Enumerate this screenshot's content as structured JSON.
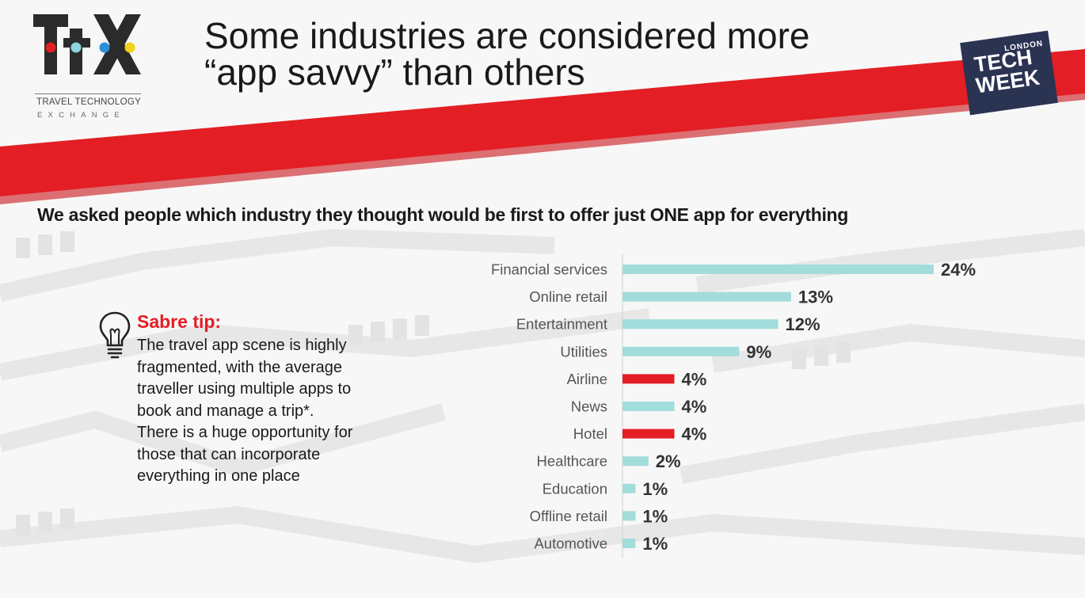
{
  "logo": {
    "mark": "ttx",
    "line1": "TRAVEL TECHNOLOGY",
    "line2": "EXCHANGE",
    "colors": {
      "letters": "#2b2b2b",
      "dot_red": "#e31e24",
      "dot_aqua": "#8fd3e0",
      "dot_blue": "#2d8fd6",
      "dot_yellow": "#f2d21b"
    }
  },
  "title": {
    "line1": "Some industries are considered more",
    "line2": "“app savvy” than others"
  },
  "badge": {
    "small": "LONDON",
    "big1": "TECH",
    "big2": "WEEK",
    "color": "#2b3353"
  },
  "subtitle": "We asked people which industry they thought would be first to offer just ONE app for everything",
  "tip": {
    "icon": "lightbulb-icon",
    "heading": "Sabre tip:",
    "body": "The travel app scene is highly fragmented, with the average traveller using multiple apps to book and manage a trip*.  There is a huge opportunity for those that can incorporate everything in one place"
  },
  "colors": {
    "accent_red": "#e31e24",
    "bar_aqua": "#a2dcdb",
    "text_dark": "#1a1a1a"
  },
  "chart_data": {
    "type": "bar",
    "orientation": "horizontal",
    "categories": [
      "Financial services",
      "Online retail",
      "Entertainment",
      "Utilities",
      "Airline",
      "News",
      "Hotel",
      "Healthcare",
      "Education",
      "Offline retail",
      "Automotive"
    ],
    "values": [
      24,
      13,
      12,
      9,
      4,
      4,
      4,
      2,
      1,
      1,
      1
    ],
    "value_labels": [
      "24%",
      "13%",
      "12%",
      "9%",
      "4%",
      "4%",
      "4%",
      "2%",
      "1%",
      "1%",
      "1%"
    ],
    "highlighted": [
      "Airline",
      "Hotel"
    ],
    "unit": "%",
    "xlim": [
      0,
      24
    ],
    "grid": false
  }
}
